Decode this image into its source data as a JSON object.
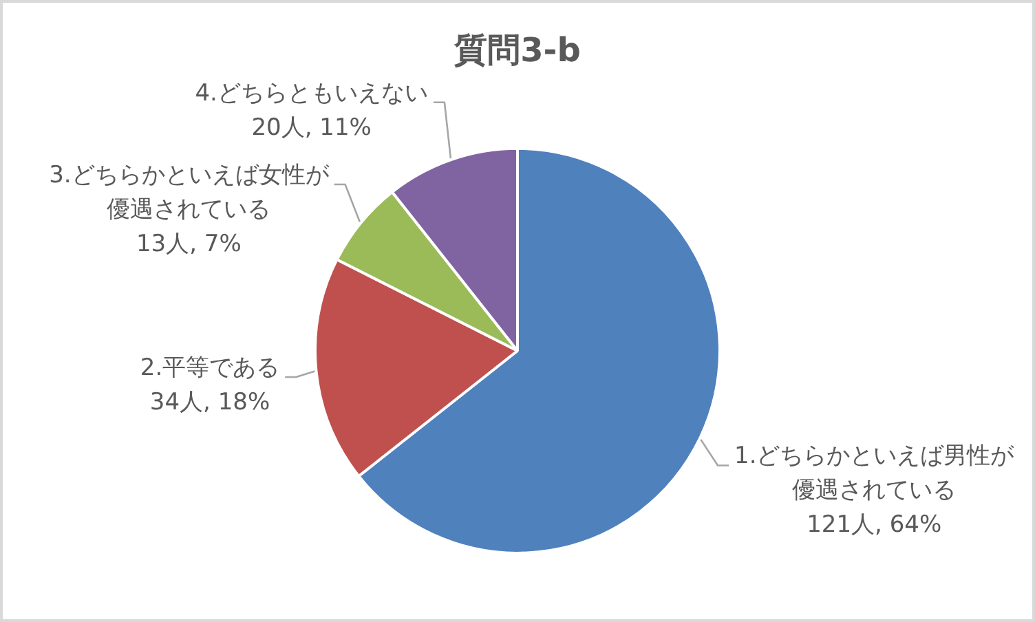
{
  "chart_data": {
    "type": "pie",
    "title": "質問3-b",
    "categories": [
      "1.どちらかといえば男性が優遇されている",
      "2.平等である",
      "3.どちらかといえば女性が優遇されている",
      "4.どちらともいえない"
    ],
    "values": [
      121,
      34,
      13,
      20
    ],
    "value_labels": [
      "121人, 64%",
      "34人, 18%",
      "13人, 7%",
      "20人, 11%"
    ],
    "colors": [
      "#4f81bd",
      "#c0504d",
      "#9bbb59",
      "#8064a2"
    ]
  }
}
